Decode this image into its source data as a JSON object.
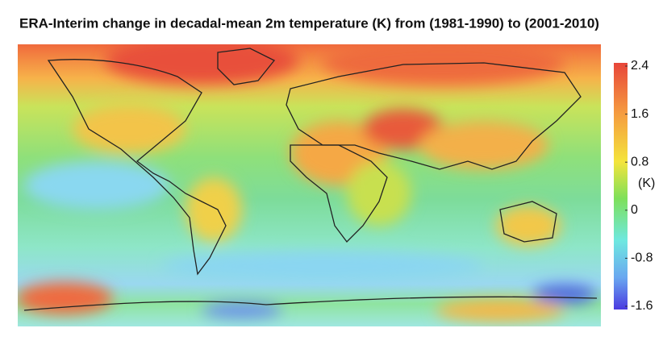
{
  "title": "ERA-Interim change in decadal-mean 2m temperature (K) from (1981-1990) to (2001-2010)",
  "colorbar": {
    "label": "(K)",
    "clim": [
      -1.6,
      2.4
    ],
    "ticks": [
      2.4,
      1.6,
      0.8,
      0,
      -0.8,
      -1.6
    ]
  }
}
